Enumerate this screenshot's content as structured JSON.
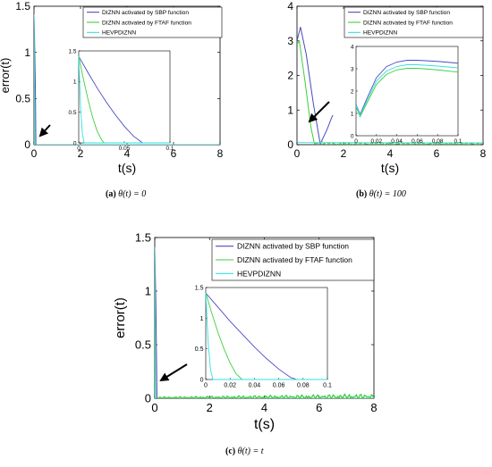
{
  "colors": {
    "sbp": "#4a4ac2",
    "ftaf": "#3ecf3e",
    "hevp": "#35e0e0",
    "arrow": "#000000"
  },
  "captions": [
    {
      "label": "(a)",
      "text": "θ(t) = 0"
    },
    {
      "label": "(b)",
      "text": "θ(t) = 100"
    },
    {
      "label": "(c)",
      "text": "θ(t) = t"
    }
  ],
  "chart_data": [
    {
      "type": "line",
      "panel": "a",
      "xlabel": "t(s)",
      "ylabel": "error(t)",
      "xlim": [
        0,
        8
      ],
      "ylim": [
        0,
        1.5
      ],
      "xticks": [
        "0",
        "2",
        "4",
        "6",
        "8"
      ],
      "yticks": [
        "0",
        "0.5",
        "1",
        "1.5"
      ],
      "legend": [
        "DIZNN activated by SBP function",
        "DIZNN activated by FTAF function",
        "HEVPDIZNN"
      ],
      "legend_position": "top-right",
      "series": [
        {
          "name": "DIZNN activated by SBP function",
          "points": [
            [
              0,
              1.41
            ],
            [
              0.02,
              1.2
            ],
            [
              0.04,
              0.9
            ],
            [
              0.06,
              0.6
            ],
            [
              0.07,
              0.35
            ],
            [
              0.08,
              0
            ],
            [
              8,
              0
            ]
          ]
        },
        {
          "name": "DIZNN activated by FTAF function",
          "points": [
            [
              0,
              1.41
            ],
            [
              0.01,
              1.1
            ],
            [
              0.02,
              0.6
            ],
            [
              0.03,
              0
            ],
            [
              8,
              0
            ]
          ]
        },
        {
          "name": "HEVPDIZNN",
          "points": [
            [
              0,
              1.41
            ],
            [
              0.005,
              0.5
            ],
            [
              0.01,
              0
            ],
            [
              8,
              0
            ]
          ]
        }
      ],
      "inset": {
        "xlim": [
          0,
          0.1
        ],
        "ylim": [
          0,
          1.5
        ],
        "xticks": [
          "0",
          "0.05",
          "0.1"
        ],
        "yticks": [
          "0",
          "0.5",
          "1",
          "1.5"
        ],
        "series": [
          {
            "name": "DIZNN activated by SBP function",
            "points": [
              [
                0,
                1.41
              ],
              [
                0.01,
                1.15
              ],
              [
                0.02,
                0.9
              ],
              [
                0.03,
                0.67
              ],
              [
                0.04,
                0.46
              ],
              [
                0.05,
                0.27
              ],
              [
                0.06,
                0.11
              ],
              [
                0.07,
                0
              ],
              [
                0.1,
                0
              ]
            ]
          },
          {
            "name": "DIZNN activated by FTAF function",
            "points": [
              [
                0,
                1.41
              ],
              [
                0.005,
                1.05
              ],
              [
                0.01,
                0.72
              ],
              [
                0.015,
                0.43
              ],
              [
                0.02,
                0.2
              ],
              [
                0.025,
                0.05
              ],
              [
                0.028,
                0
              ],
              [
                0.1,
                0
              ]
            ]
          },
          {
            "name": "HEVPDIZNN",
            "points": [
              [
                0,
                1.41
              ],
              [
                0.002,
                0.6
              ],
              [
                0.004,
                0.15
              ],
              [
                0.006,
                0
              ],
              [
                0.1,
                0
              ]
            ]
          }
        ]
      }
    },
    {
      "type": "line",
      "panel": "b",
      "xlabel": "t(s)",
      "ylabel": "",
      "xlim": [
        0,
        8
      ],
      "ylim": [
        0,
        4
      ],
      "xticks": [
        "0",
        "2",
        "4",
        "6",
        "8"
      ],
      "yticks": [
        "0",
        "1",
        "2",
        "3",
        "4"
      ],
      "legend": [
        "DIZNN activated by SBP function",
        "DIZNN activated by FTAF function",
        "HEVPDIZNN"
      ],
      "legend_position": "top-right",
      "series": [
        {
          "name": "DIZNN activated by SBP function",
          "points": [
            [
              0,
              3.0
            ],
            [
              0.15,
              3.4
            ],
            [
              0.4,
              2.6
            ],
            [
              0.7,
              1.2
            ],
            [
              1.0,
              0.02
            ],
            [
              1.3,
              0.45
            ],
            [
              1.5,
              0.8
            ],
            [
              1.55,
              0.85
            ]
          ]
        },
        {
          "name": "DIZNN activated by FTAF function",
          "points": [
            [
              0,
              2.9
            ],
            [
              0.1,
              3.0
            ],
            [
              0.35,
              1.8
            ],
            [
              0.6,
              0.5
            ],
            [
              0.75,
              0.02
            ],
            [
              1.05,
              0.08
            ],
            [
              1.1,
              0.1
            ]
          ]
        },
        {
          "name": "HEVPDIZNN",
          "points": [
            [
              0,
              0.1
            ],
            [
              0.1,
              0.06
            ],
            [
              8,
              0.05
            ]
          ]
        }
      ],
      "inset": {
        "xlim": [
          0,
          0.1
        ],
        "ylim": [
          0,
          4
        ],
        "xticks": [
          "0",
          "0.02",
          "0.04",
          "0.06",
          "0.08",
          "0.1"
        ],
        "yticks": [
          "0",
          "1",
          "2",
          "3",
          "4"
        ],
        "series": [
          {
            "name": "DIZNN activated by SBP function",
            "points": [
              [
                0,
                1.4
              ],
              [
                0.004,
                0.95
              ],
              [
                0.01,
                1.6
              ],
              [
                0.02,
                2.6
              ],
              [
                0.03,
                3.1
              ],
              [
                0.04,
                3.3
              ],
              [
                0.05,
                3.38
              ],
              [
                0.06,
                3.38
              ],
              [
                0.08,
                3.33
              ],
              [
                0.1,
                3.25
              ]
            ]
          },
          {
            "name": "DIZNN activated by FTAF function",
            "points": [
              [
                0,
                1.3
              ],
              [
                0.004,
                0.85
              ],
              [
                0.01,
                1.4
              ],
              [
                0.02,
                2.3
              ],
              [
                0.03,
                2.75
              ],
              [
                0.04,
                2.95
              ],
              [
                0.05,
                3.02
              ],
              [
                0.06,
                3.02
              ],
              [
                0.08,
                2.95
              ],
              [
                0.1,
                2.85
              ]
            ]
          },
          {
            "name": "HEVPDIZNN",
            "points": [
              [
                0,
                1.35
              ],
              [
                0.004,
                0.9
              ],
              [
                0.01,
                1.5
              ],
              [
                0.02,
                2.45
              ],
              [
                0.03,
                2.9
              ],
              [
                0.04,
                3.1
              ],
              [
                0.05,
                3.18
              ],
              [
                0.06,
                3.18
              ],
              [
                0.08,
                3.12
              ],
              [
                0.1,
                3.04
              ]
            ]
          }
        ]
      }
    },
    {
      "type": "line",
      "panel": "c",
      "xlabel": "t(s)",
      "ylabel": "error(t)",
      "xlim": [
        0,
        8
      ],
      "ylim": [
        0,
        1.5
      ],
      "xticks": [
        "0",
        "2",
        "4",
        "6",
        "8"
      ],
      "yticks": [
        "0",
        "0.5",
        "1",
        "1.5"
      ],
      "legend": [
        "DIZNN activated by SBP function",
        "DIZNN activated by FTAF function",
        "HEVPDIZNN"
      ],
      "legend_position": "top-right",
      "series": [
        {
          "name": "DIZNN activated by SBP function",
          "points": [
            [
              0,
              1.41
            ],
            [
              0.04,
              0.9
            ],
            [
              0.08,
              0
            ],
            [
              8,
              0
            ]
          ]
        },
        {
          "name": "DIZNN activated by FTAF function",
          "points": [
            [
              0,
              1.41
            ],
            [
              0.02,
              0.6
            ],
            [
              0.03,
              0
            ],
            [
              8,
              0
            ]
          ]
        },
        {
          "name": "HEVPDIZNN",
          "points": [
            [
              0,
              1.41
            ],
            [
              0.005,
              0.5
            ],
            [
              0.01,
              0
            ],
            [
              8,
              0
            ]
          ]
        }
      ],
      "inset": {
        "xlim": [
          0,
          0.1
        ],
        "ylim": [
          0,
          1.5
        ],
        "xticks": [
          "0",
          "0.02",
          "0.04",
          "0.06",
          "0.08",
          "0.1"
        ],
        "yticks": [
          "0",
          "0.5",
          "1",
          "1.5"
        ],
        "series": [
          {
            "name": "DIZNN activated by SBP function",
            "points": [
              [
                0,
                1.41
              ],
              [
                0.01,
                1.18
              ],
              [
                0.02,
                0.95
              ],
              [
                0.03,
                0.74
              ],
              [
                0.04,
                0.53
              ],
              [
                0.05,
                0.34
              ],
              [
                0.06,
                0.17
              ],
              [
                0.07,
                0.03
              ],
              [
                0.075,
                0
              ],
              [
                0.1,
                0
              ]
            ]
          },
          {
            "name": "DIZNN activated by FTAF function",
            "points": [
              [
                0,
                1.41
              ],
              [
                0.005,
                1.08
              ],
              [
                0.01,
                0.77
              ],
              [
                0.015,
                0.5
              ],
              [
                0.02,
                0.27
              ],
              [
                0.025,
                0.09
              ],
              [
                0.03,
                0
              ],
              [
                0.1,
                0
              ]
            ]
          },
          {
            "name": "HEVPDIZNN",
            "points": [
              [
                0,
                1.41
              ],
              [
                0.002,
                0.6
              ],
              [
                0.004,
                0.15
              ],
              [
                0.006,
                0
              ],
              [
                0.1,
                0
              ]
            ]
          }
        ]
      }
    }
  ]
}
